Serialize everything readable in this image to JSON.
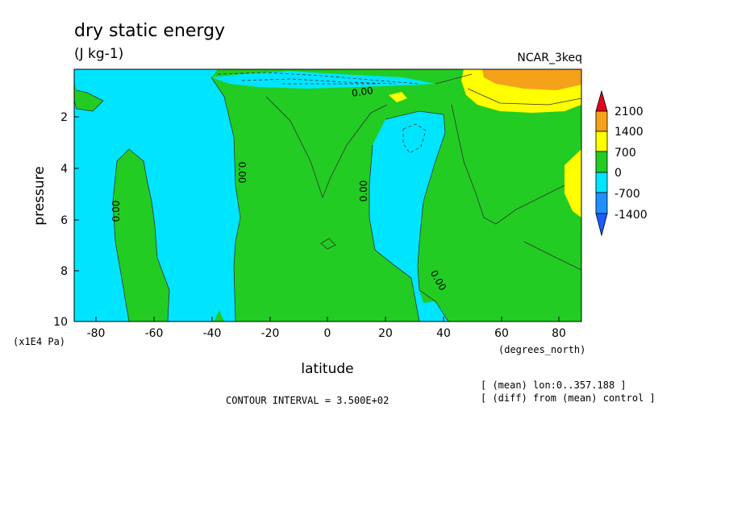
{
  "chart_data": {
    "type": "heatmap",
    "title": "dry static energy",
    "units": "(J kg-1)",
    "dataset": "NCAR_3keq",
    "xlabel": "latitude",
    "xunits": "(degrees_north)",
    "ylabel": "pressure",
    "yunits": "(x1E4 Pa)",
    "x_ticks": [
      "-80",
      "-60",
      "-40",
      "-20",
      "0",
      "20",
      "40",
      "60",
      "80"
    ],
    "y_ticks": [
      "2",
      "4",
      "6",
      "8",
      "10"
    ],
    "xlim": [
      -88,
      88
    ],
    "ylim": [
      0.2,
      10
    ],
    "y_inverted": true,
    "contour_interval": "CONTOUR INTERVAL = 3.500E+02",
    "contour_labels": [
      "0.00",
      "0.00",
      "0.00",
      "0.00",
      "0.00"
    ],
    "notes": [
      "[ (mean) lon:0..357.188 ]",
      "[ (diff) from (mean) control ]"
    ],
    "colorbar": {
      "levels": [
        "2100",
        "1400",
        "700",
        "0",
        "-700",
        "-1400"
      ],
      "colors": [
        "#e8001a",
        "#f5a21a",
        "#ffff00",
        "#22cc22",
        "#00e5ff",
        "#1e90ff",
        "#1a5cff"
      ]
    },
    "regions": [
      {
        "name": "negative (-700..0)",
        "color": "#00e5ff"
      },
      {
        "name": "positive (0..700)",
        "color": "#22cc22"
      },
      {
        "name": "positive (700..1400)",
        "color": "#ffff00"
      },
      {
        "name": "positive (1400..2100)",
        "color": "#f5a21a"
      }
    ]
  }
}
